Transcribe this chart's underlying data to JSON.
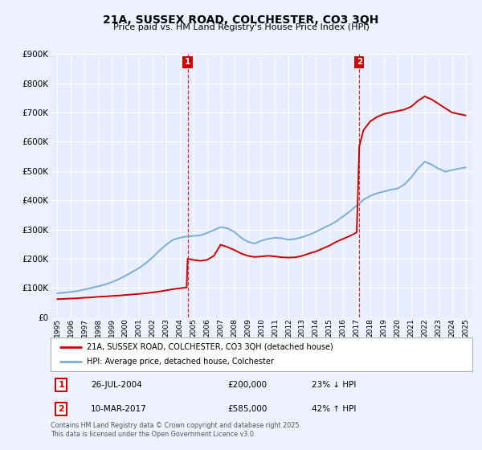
{
  "title": "21A, SUSSEX ROAD, COLCHESTER, CO3 3QH",
  "subtitle": "Price paid vs. HM Land Registry's House Price Index (HPI)",
  "background_color": "#eef2ff",
  "plot_bg_color": "#e8eeff",
  "legend_label_red": "21A, SUSSEX ROAD, COLCHESTER, CO3 3QH (detached house)",
  "legend_label_blue": "HPI: Average price, detached house, Colchester",
  "annotation1_date": "26-JUL-2004",
  "annotation1_price": "£200,000",
  "annotation1_hpi": "23% ↓ HPI",
  "annotation2_date": "10-MAR-2017",
  "annotation2_price": "£585,000",
  "annotation2_hpi": "42% ↑ HPI",
  "footer": "Contains HM Land Registry data © Crown copyright and database right 2025.\nThis data is licensed under the Open Government Licence v3.0.",
  "red_color": "#cc0000",
  "blue_color": "#7aadd4",
  "vline_color": "#cc0000",
  "annotation_box_color": "#cc0000",
  "ylim_min": 0,
  "ylim_max": 900000,
  "xlim_min": 1994.5,
  "xlim_max": 2025.5,
  "hpi_years": [
    1995,
    1995.5,
    1996,
    1996.5,
    1997,
    1997.5,
    1998,
    1998.5,
    1999,
    1999.5,
    2000,
    2000.5,
    2001,
    2001.5,
    2002,
    2002.5,
    2003,
    2003.5,
    2004,
    2004.5,
    2005,
    2005.5,
    2006,
    2006.5,
    2007,
    2007.5,
    2008,
    2008.5,
    2009,
    2009.5,
    2010,
    2010.5,
    2011,
    2011.5,
    2012,
    2012.5,
    2013,
    2013.5,
    2014,
    2014.5,
    2015,
    2015.5,
    2016,
    2016.5,
    2017,
    2017.5,
    2018,
    2018.5,
    2019,
    2019.5,
    2020,
    2020.5,
    2021,
    2021.5,
    2022,
    2022.5,
    2023,
    2023.5,
    2024,
    2024.5,
    2025
  ],
  "hpi_values": [
    82000,
    84000,
    87000,
    90000,
    95000,
    100000,
    106000,
    112000,
    120000,
    130000,
    142000,
    155000,
    168000,
    185000,
    205000,
    228000,
    248000,
    265000,
    272000,
    276000,
    278000,
    280000,
    288000,
    298000,
    308000,
    304000,
    292000,
    272000,
    258000,
    252000,
    262000,
    268000,
    272000,
    270000,
    265000,
    268000,
    274000,
    282000,
    292000,
    304000,
    315000,
    328000,
    345000,
    362000,
    382000,
    402000,
    415000,
    424000,
    430000,
    436000,
    440000,
    454000,
    478000,
    508000,
    532000,
    522000,
    508000,
    498000,
    503000,
    508000,
    512000
  ],
  "red_years": [
    1995.0,
    1995.5,
    1996.0,
    1996.5,
    1997.0,
    1997.5,
    1998.0,
    1998.5,
    1999.0,
    1999.5,
    2000.0,
    2000.5,
    2001.0,
    2001.5,
    2002.0,
    2002.5,
    2003.0,
    2003.5,
    2004.0,
    2004.5,
    2004.57,
    2005.0,
    2005.5,
    2006.0,
    2006.5,
    2007.0,
    2007.5,
    2008.0,
    2008.5,
    2009.0,
    2009.5,
    2010.0,
    2010.5,
    2011.0,
    2011.5,
    2012.0,
    2012.5,
    2013.0,
    2013.5,
    2014.0,
    2014.5,
    2015.0,
    2015.5,
    2016.0,
    2016.5,
    2017.0,
    2017.19,
    2017.5,
    2018.0,
    2018.5,
    2019.0,
    2019.5,
    2020.0,
    2020.5,
    2021.0,
    2021.5,
    2022.0,
    2022.5,
    2023.0,
    2023.5,
    2024.0,
    2024.5,
    2025.0
  ],
  "red_values": [
    62000,
    63000,
    64000,
    65000,
    67000,
    68000,
    70000,
    71000,
    73000,
    74000,
    76000,
    78000,
    80000,
    82000,
    85000,
    88000,
    92000,
    96000,
    99000,
    102000,
    200000,
    196000,
    193000,
    196000,
    210000,
    248000,
    240000,
    230000,
    218000,
    210000,
    206000,
    208000,
    210000,
    208000,
    205000,
    204000,
    205000,
    210000,
    218000,
    225000,
    235000,
    245000,
    258000,
    268000,
    278000,
    290000,
    585000,
    640000,
    670000,
    685000,
    695000,
    700000,
    705000,
    710000,
    720000,
    740000,
    755000,
    745000,
    730000,
    715000,
    700000,
    695000,
    690000
  ]
}
